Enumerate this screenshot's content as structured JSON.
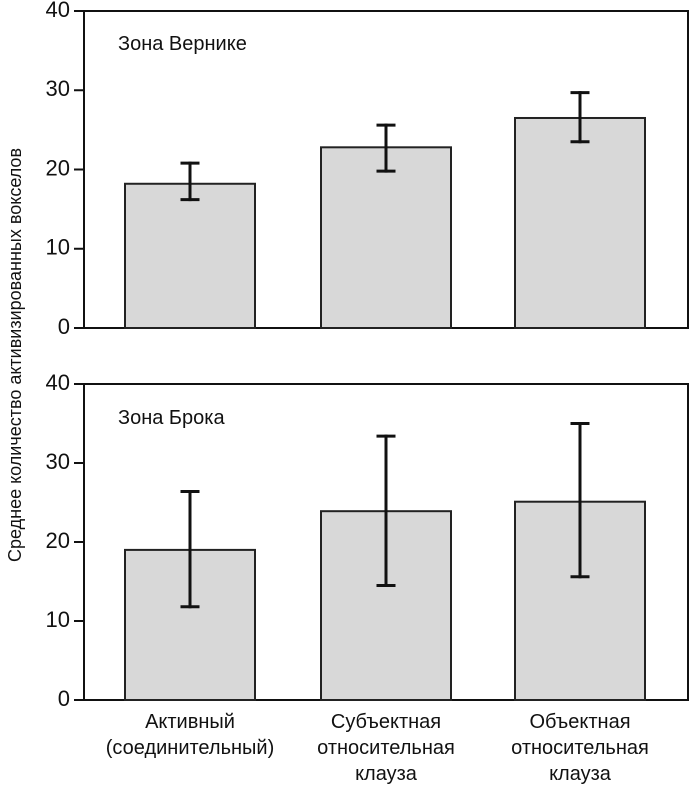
{
  "chart_data": {
    "type": "bar",
    "ylabel": "Среднее количество активизированных вокселов",
    "xlabel": "",
    "ylim": [
      0,
      40
    ],
    "yticks": [
      0,
      10,
      20,
      30,
      40
    ],
    "grid": false,
    "categories": [
      [
        "Активный",
        "(соединительный)"
      ],
      [
        "Субъектная",
        "относительная",
        "клауза"
      ],
      [
        "Объектная",
        "относительная",
        "клауза"
      ]
    ],
    "panels": [
      {
        "title": "Зона Вернике",
        "values": [
          18.2,
          22.8,
          26.5
        ],
        "error_low": [
          16.2,
          19.8,
          23.5
        ],
        "error_high": [
          20.8,
          25.6,
          29.7
        ]
      },
      {
        "title": "Зона Брока",
        "values": [
          19.0,
          23.9,
          25.1
        ],
        "error_low": [
          11.8,
          14.5,
          15.6
        ],
        "error_high": [
          26.4,
          33.4,
          35.0
        ]
      }
    ],
    "colors": {
      "bar_fill": "#d8d8d8",
      "outline": "#111111"
    }
  }
}
